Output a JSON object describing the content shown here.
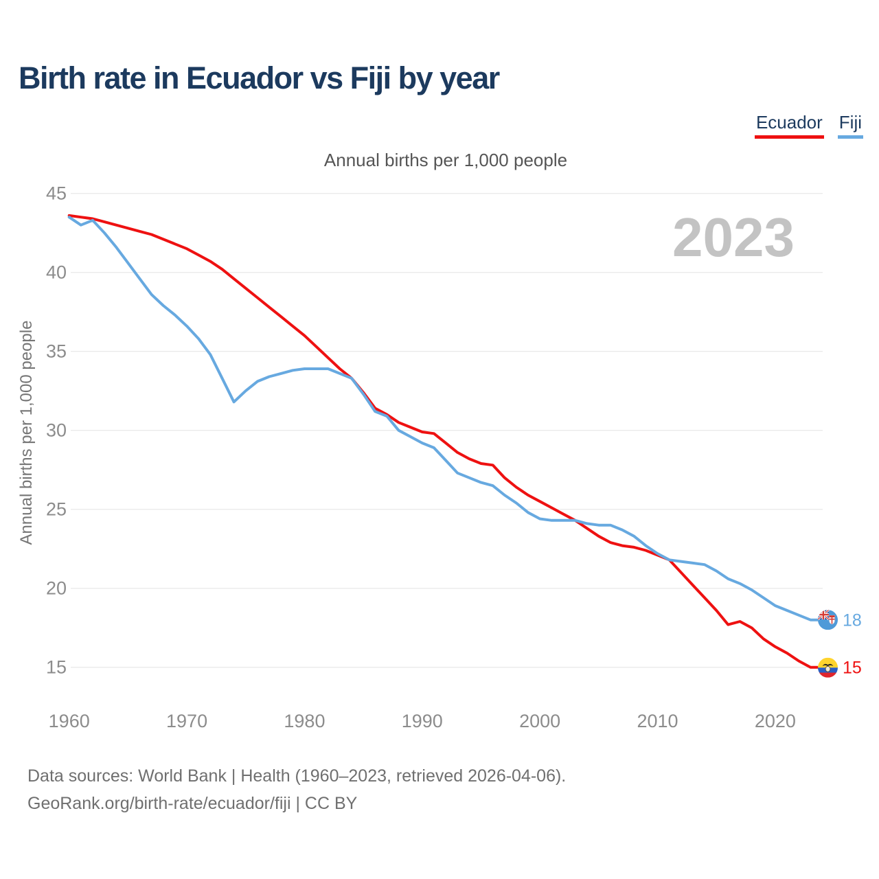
{
  "header": {
    "title": "Birth rate in Ecuador vs Fiji by year"
  },
  "legend": {
    "items": [
      {
        "label": "Ecuador",
        "color": "#ee1111"
      },
      {
        "label": "Fiji",
        "color": "#67a9e0"
      }
    ]
  },
  "subtitle": "Annual births per 1,000 people",
  "watermark": "2023",
  "end_labels": [
    {
      "series": "Fiji",
      "text": "18",
      "color": "#67a9e0",
      "value": 18
    },
    {
      "series": "Ecuador",
      "text": "15",
      "color": "#ee1111",
      "value": 15
    }
  ],
  "footer": {
    "line1": "Data sources: World Bank | Health (1960–2023, retrieved 2026-04-06).",
    "line2": "GeoRank.org/birth-rate/ecuador/fiji | CC BY"
  },
  "chart_data": {
    "type": "line",
    "title": "Birth rate in Ecuador vs Fiji by year",
    "ylabel": "Annual births per 1,000 people",
    "xlabel": "",
    "xticks": [
      1960,
      1970,
      1980,
      1990,
      2000,
      2010,
      2020
    ],
    "yticks": [
      15,
      20,
      25,
      30,
      35,
      40,
      45
    ],
    "ylim": [
      15,
      45
    ],
    "grid": true,
    "legend_position": "top-right",
    "x": [
      1960,
      1961,
      1962,
      1963,
      1964,
      1965,
      1966,
      1967,
      1968,
      1969,
      1970,
      1971,
      1972,
      1973,
      1974,
      1975,
      1976,
      1977,
      1978,
      1979,
      1980,
      1981,
      1982,
      1983,
      1984,
      1985,
      1986,
      1987,
      1988,
      1989,
      1990,
      1991,
      1992,
      1993,
      1994,
      1995,
      1996,
      1997,
      1998,
      1999,
      2000,
      2001,
      2002,
      2003,
      2004,
      2005,
      2006,
      2007,
      2008,
      2009,
      2010,
      2011,
      2012,
      2013,
      2014,
      2015,
      2016,
      2017,
      2018,
      2019,
      2020,
      2021,
      2022,
      2023
    ],
    "series": [
      {
        "name": "Ecuador",
        "color": "#ee1111",
        "values": [
          43.6,
          43.5,
          43.4,
          43.2,
          43.0,
          42.8,
          42.6,
          42.4,
          42.1,
          41.8,
          41.5,
          41.1,
          40.7,
          40.2,
          39.6,
          39.0,
          38.4,
          37.8,
          37.2,
          36.6,
          36.0,
          35.3,
          34.6,
          33.9,
          33.3,
          32.4,
          31.4,
          31.0,
          30.5,
          30.2,
          29.9,
          29.8,
          29.2,
          28.6,
          28.2,
          27.9,
          27.8,
          27.0,
          26.4,
          25.9,
          25.5,
          25.1,
          24.7,
          24.3,
          23.8,
          23.3,
          22.9,
          22.7,
          22.6,
          22.4,
          22.1,
          21.8,
          21.0,
          20.2,
          19.4,
          18.6,
          17.7,
          17.9,
          17.5,
          16.8,
          16.3,
          15.9,
          15.4,
          15.0
        ]
      },
      {
        "name": "Fiji",
        "color": "#67a9e0",
        "values": [
          43.5,
          43.0,
          43.3,
          42.5,
          41.6,
          40.6,
          39.6,
          38.6,
          37.9,
          37.3,
          36.6,
          35.8,
          34.8,
          33.3,
          31.8,
          32.5,
          33.1,
          33.4,
          33.6,
          33.8,
          33.9,
          33.9,
          33.9,
          33.6,
          33.3,
          32.3,
          31.2,
          30.9,
          30.0,
          29.6,
          29.2,
          28.9,
          28.1,
          27.3,
          27.0,
          26.7,
          26.5,
          25.9,
          25.4,
          24.8,
          24.4,
          24.3,
          24.3,
          24.3,
          24.1,
          24.0,
          24.0,
          23.7,
          23.3,
          22.7,
          22.2,
          21.8,
          21.7,
          21.6,
          21.5,
          21.1,
          20.6,
          20.3,
          19.9,
          19.4,
          18.9,
          18.6,
          18.3,
          18.0
        ]
      }
    ]
  }
}
